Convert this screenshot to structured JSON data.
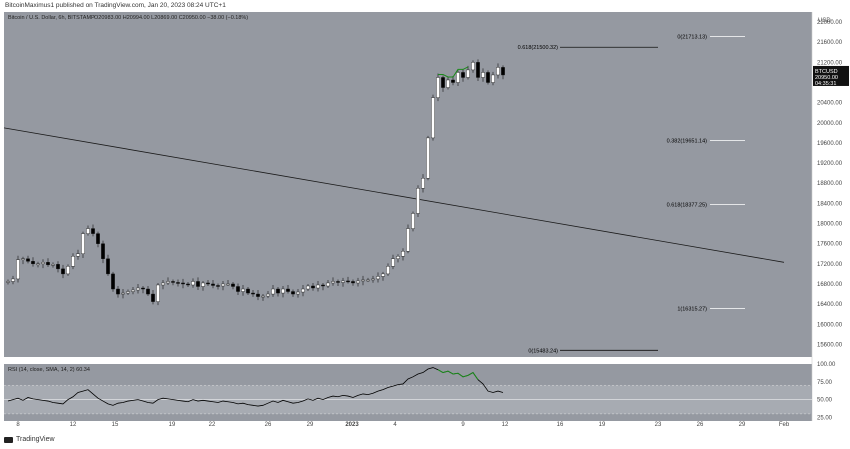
{
  "header": {
    "published": "BitcoinMaximus1 published on TradingView.com, Jan 20, 2023 08:24 UTC+1"
  },
  "legend": {
    "symbol": "Bitcoin / U.S. Dollar, 6h, BITSTAMP",
    "ohlc": "O20983.00  H20994.00  L20869.00  C20950.00  −38.00 (−0.18%)"
  },
  "rsi_legend": "RSI (14, close, SMA, 14, 2)  60.34",
  "footer": {
    "brand": "TradingView"
  },
  "price_badge": {
    "symbol": "BTCUSD",
    "price": "20950.00",
    "countdown": "04:35:31"
  },
  "colors": {
    "panel": "#9599a1",
    "candle_up": "#ffffff",
    "candle_down": "#000000",
    "rsi_line": "#000000",
    "rsi_highlight": "#1a8a1a",
    "trendline": "#1a1a1a",
    "fib_label": "#000000"
  },
  "chart_data": {
    "type": "candlestick",
    "currency_label": "USD",
    "y_ticks": [
      "22000.00",
      "21600.00",
      "21200.00",
      "20800.00",
      "20400.00",
      "20000.00",
      "19600.00",
      "19200.00",
      "18800.00",
      "18400.00",
      "18000.00",
      "17600.00",
      "17200.00",
      "16800.00",
      "16400.00",
      "16000.00",
      "15600.00"
    ],
    "ylim": [
      15350,
      22200
    ],
    "x_ticks": [
      "8",
      "12",
      "15",
      "19",
      "22",
      "26",
      "29",
      "2023",
      "4",
      "9",
      "12",
      "16",
      "19",
      "23",
      "26",
      "29",
      "Feb"
    ],
    "fib_levels": [
      {
        "label": "0(21713.13)",
        "value": 21713.13
      },
      {
        "label": "0.382(19651.14)",
        "value": 19651.14
      },
      {
        "label": "0.618(18377.25)",
        "value": 18377.25
      },
      {
        "label": "1(16315.27)",
        "value": 16315.27
      },
      {
        "label": "0(15483.24)",
        "value": 15483.24
      },
      {
        "label": "0.618(21500.32)",
        "value": 21500.32
      }
    ],
    "trendline": {
      "start": {
        "x_index": 0,
        "value": 19900
      },
      "end": {
        "x_index": 124,
        "value": 17230
      }
    },
    "close_series": [
      16850,
      16900,
      17280,
      17300,
      17250,
      17200,
      17200,
      17230,
      17180,
      17190,
      17100,
      17000,
      17150,
      17350,
      17400,
      17800,
      17900,
      17800,
      17600,
      17300,
      17000,
      16700,
      16600,
      16620,
      16650,
      16680,
      16720,
      16700,
      16600,
      16450,
      16780,
      16820,
      16850,
      16830,
      16820,
      16800,
      16780,
      16850,
      16750,
      16820,
      16800,
      16770,
      16760,
      16800,
      16800,
      16750,
      16650,
      16700,
      16620,
      16600,
      16550,
      16560,
      16600,
      16700,
      16620,
      16700,
      16650,
      16600,
      16640,
      16700,
      16760,
      16720,
      16780,
      16760,
      16820,
      16850,
      16830,
      16860,
      16850,
      16820,
      16860,
      16880,
      16880,
      16900,
      16950,
      17000,
      17150,
      17300,
      17350,
      17450,
      17900,
      18200,
      18700,
      18900,
      19700,
      20500,
      20900,
      20700,
      20850,
      20800,
      21000,
      20900,
      21050,
      21200,
      20900,
      21000,
      20800,
      20950,
      21100,
      20950
    ],
    "rsi": {
      "ylim": [
        20,
        100
      ],
      "ticks": [
        "100.00",
        "75.00",
        "50.00",
        "25.00"
      ],
      "band": [
        30,
        70
      ],
      "values": [
        48,
        50,
        52,
        49,
        53,
        51,
        50,
        49,
        48,
        46,
        45,
        44,
        50,
        54,
        60,
        62,
        64,
        58,
        52,
        48,
        44,
        42,
        45,
        46,
        48,
        49,
        50,
        48,
        46,
        45,
        50,
        52,
        51,
        50,
        49,
        48,
        47,
        50,
        48,
        49,
        48,
        47,
        46,
        48,
        47,
        46,
        44,
        45,
        43,
        42,
        41,
        42,
        45,
        48,
        46,
        49,
        47,
        45,
        46,
        48,
        51,
        49,
        52,
        50,
        53,
        55,
        54,
        56,
        55,
        53,
        56,
        58,
        57,
        59,
        62,
        64,
        67,
        69,
        71,
        72,
        79,
        82,
        86,
        88,
        93,
        95,
        92,
        88,
        90,
        86,
        87,
        82,
        84,
        88,
        78,
        72,
        62,
        60,
        62,
        60
      ],
      "highlight_from": 86,
      "highlight_to": 94
    }
  }
}
